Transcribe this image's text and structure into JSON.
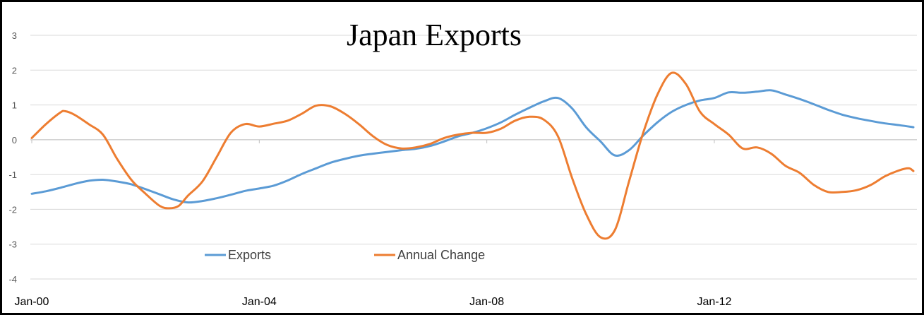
{
  "chart_data": {
    "type": "line",
    "title": "Japan Exports",
    "x_tick_labels": [
      "Jan-00",
      "Jan-04",
      "Jan-08",
      "Jan-12"
    ],
    "y_tick_labels": [
      "3",
      "2",
      "1",
      "0",
      "-1",
      "-2",
      "-3",
      "-4"
    ],
    "ylim": [
      -4,
      3
    ],
    "xlim": [
      "2000-01",
      "2015-07"
    ],
    "grid": true,
    "legend_position": "bottom-left",
    "series": [
      {
        "name": "Exports",
        "color": "#5B9BD5",
        "points": [
          [
            "2000-01",
            -1.55
          ],
          [
            "2000-04",
            -1.48
          ],
          [
            "2000-07",
            -1.38
          ],
          [
            "2000-10",
            -1.27
          ],
          [
            "2001-01",
            -1.18
          ],
          [
            "2001-04",
            -1.15
          ],
          [
            "2001-07",
            -1.2
          ],
          [
            "2001-10",
            -1.28
          ],
          [
            "2002-01",
            -1.42
          ],
          [
            "2002-04",
            -1.57
          ],
          [
            "2002-07",
            -1.72
          ],
          [
            "2002-10",
            -1.8
          ],
          [
            "2003-01",
            -1.76
          ],
          [
            "2003-04",
            -1.68
          ],
          [
            "2003-07",
            -1.58
          ],
          [
            "2003-10",
            -1.47
          ],
          [
            "2004-01",
            -1.4
          ],
          [
            "2004-04",
            -1.32
          ],
          [
            "2004-07",
            -1.17
          ],
          [
            "2004-10",
            -0.98
          ],
          [
            "2005-01",
            -0.82
          ],
          [
            "2005-04",
            -0.66
          ],
          [
            "2005-07",
            -0.55
          ],
          [
            "2005-10",
            -0.46
          ],
          [
            "2006-01",
            -0.4
          ],
          [
            "2006-04",
            -0.35
          ],
          [
            "2006-07",
            -0.3
          ],
          [
            "2006-10",
            -0.26
          ],
          [
            "2007-01",
            -0.18
          ],
          [
            "2007-04",
            -0.05
          ],
          [
            "2007-07",
            0.1
          ],
          [
            "2007-10",
            0.2
          ],
          [
            "2008-01",
            0.33
          ],
          [
            "2008-04",
            0.5
          ],
          [
            "2008-07",
            0.72
          ],
          [
            "2008-10",
            0.92
          ],
          [
            "2009-01",
            1.1
          ],
          [
            "2009-04",
            1.2
          ],
          [
            "2009-07",
            0.9
          ],
          [
            "2009-10",
            0.35
          ],
          [
            "2010-01",
            -0.05
          ],
          [
            "2010-04",
            -0.45
          ],
          [
            "2010-07",
            -0.3
          ],
          [
            "2010-10",
            0.12
          ],
          [
            "2011-01",
            0.5
          ],
          [
            "2011-04",
            0.8
          ],
          [
            "2011-07",
            1.0
          ],
          [
            "2011-10",
            1.13
          ],
          [
            "2012-01",
            1.2
          ],
          [
            "2012-04",
            1.36
          ],
          [
            "2012-07",
            1.35
          ],
          [
            "2012-10",
            1.38
          ],
          [
            "2013-01",
            1.42
          ],
          [
            "2013-04",
            1.3
          ],
          [
            "2013-07",
            1.17
          ],
          [
            "2013-10",
            1.02
          ],
          [
            "2014-01",
            0.86
          ],
          [
            "2014-04",
            0.72
          ],
          [
            "2014-07",
            0.62
          ],
          [
            "2014-10",
            0.54
          ],
          [
            "2015-01",
            0.47
          ],
          [
            "2015-04",
            0.42
          ],
          [
            "2015-07",
            0.36
          ]
        ]
      },
      {
        "name": "Annual Change",
        "color": "#ED7D31",
        "points": [
          [
            "2000-01",
            0.05
          ],
          [
            "2000-04",
            0.45
          ],
          [
            "2000-07",
            0.78
          ],
          [
            "2000-08",
            0.82
          ],
          [
            "2000-10",
            0.72
          ],
          [
            "2001-01",
            0.45
          ],
          [
            "2001-04",
            0.15
          ],
          [
            "2001-07",
            -0.55
          ],
          [
            "2001-10",
            -1.15
          ],
          [
            "2002-01",
            -1.55
          ],
          [
            "2002-04",
            -1.9
          ],
          [
            "2002-06",
            -1.97
          ],
          [
            "2002-08",
            -1.9
          ],
          [
            "2002-10",
            -1.6
          ],
          [
            "2003-01",
            -1.2
          ],
          [
            "2003-04",
            -0.5
          ],
          [
            "2003-07",
            0.2
          ],
          [
            "2003-10",
            0.45
          ],
          [
            "2004-01",
            0.38
          ],
          [
            "2004-04",
            0.46
          ],
          [
            "2004-07",
            0.55
          ],
          [
            "2004-10",
            0.75
          ],
          [
            "2005-01",
            0.98
          ],
          [
            "2005-04",
            0.96
          ],
          [
            "2005-07",
            0.75
          ],
          [
            "2005-10",
            0.45
          ],
          [
            "2006-01",
            0.1
          ],
          [
            "2006-04",
            -0.15
          ],
          [
            "2006-07",
            -0.25
          ],
          [
            "2006-10",
            -0.22
          ],
          [
            "2007-01",
            -0.12
          ],
          [
            "2007-04",
            0.05
          ],
          [
            "2007-07",
            0.15
          ],
          [
            "2007-10",
            0.2
          ],
          [
            "2008-01",
            0.2
          ],
          [
            "2008-04",
            0.32
          ],
          [
            "2008-07",
            0.55
          ],
          [
            "2008-10",
            0.66
          ],
          [
            "2009-01",
            0.58
          ],
          [
            "2009-04",
            0.1
          ],
          [
            "2009-07",
            -1.1
          ],
          [
            "2009-10",
            -2.15
          ],
          [
            "2010-01",
            -2.8
          ],
          [
            "2010-04",
            -2.6
          ],
          [
            "2010-07",
            -1.2
          ],
          [
            "2010-10",
            0.2
          ],
          [
            "2011-01",
            1.3
          ],
          [
            "2011-04",
            1.92
          ],
          [
            "2011-07",
            1.6
          ],
          [
            "2011-10",
            0.8
          ],
          [
            "2012-01",
            0.45
          ],
          [
            "2012-04",
            0.15
          ],
          [
            "2012-07",
            -0.25
          ],
          [
            "2012-10",
            -0.22
          ],
          [
            "2013-01",
            -0.4
          ],
          [
            "2013-04",
            -0.75
          ],
          [
            "2013-07",
            -0.95
          ],
          [
            "2013-10",
            -1.3
          ],
          [
            "2014-01",
            -1.5
          ],
          [
            "2014-04",
            -1.5
          ],
          [
            "2014-07",
            -1.45
          ],
          [
            "2014-10",
            -1.3
          ],
          [
            "2015-01",
            -1.05
          ],
          [
            "2015-04",
            -0.88
          ],
          [
            "2015-06",
            -0.82
          ],
          [
            "2015-07",
            -0.9
          ]
        ]
      }
    ]
  }
}
